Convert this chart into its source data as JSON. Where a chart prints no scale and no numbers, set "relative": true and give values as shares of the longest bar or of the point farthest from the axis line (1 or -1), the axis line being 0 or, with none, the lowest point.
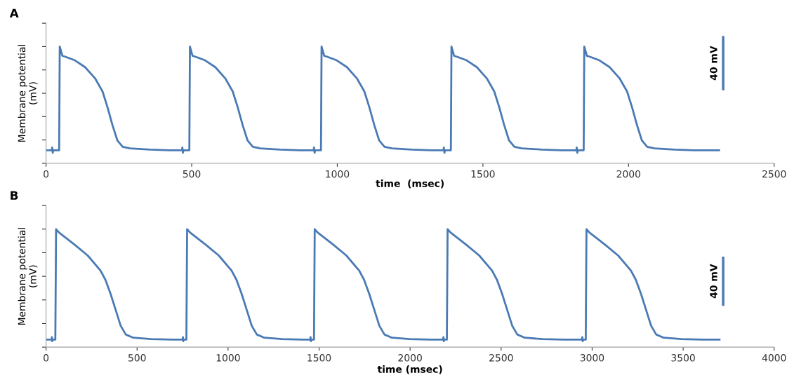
{
  "chart_data": [
    {
      "type": "line",
      "title": "A",
      "xlabel": "time  (msec)",
      "ylabel": "Membrane potential\n(mV)",
      "relative": true,
      "tick_labels": "x",
      "grid": false,
      "legend": false,
      "marker": "none",
      "line_style": "solid",
      "xlim": [
        0,
        2500
      ],
      "xticks": [
        0,
        500,
        1000,
        1500,
        2000,
        2500
      ],
      "annotations": [
        "40 mV"
      ],
      "series": [
        {
          "color": "#4a7ab4",
          "x": [
            0,
            20,
            21,
            23,
            25,
            45,
            47,
            56,
            65,
            99,
            134,
            168,
            194,
            211,
            228,
            245,
            263,
            288,
            357,
            425,
            467,
            468,
            470,
            472,
            492,
            494,
            503,
            512,
            546,
            581,
            615,
            641,
            658,
            675,
            692,
            710,
            735,
            804,
            872,
            919,
            920,
            922,
            924,
            944,
            946,
            955,
            964,
            998,
            1033,
            1067,
            1093,
            1110,
            1127,
            1144,
            1162,
            1187,
            1256,
            1324,
            1365,
            1366,
            1368,
            1370,
            1390,
            1392,
            1401,
            1410,
            1444,
            1479,
            1513,
            1539,
            1556,
            1573,
            1590,
            1608,
            1633,
            1702,
            1770,
            1821,
            1822,
            1824,
            1826,
            1846,
            1848,
            1857,
            1866,
            1900,
            1935,
            1969,
            1995,
            2012,
            2029,
            2046,
            2064,
            2089,
            2158,
            2226,
            2311
          ],
          "values": [
            0.112,
            0.112,
            0.135,
            0.09,
            0.112,
            0.112,
            1.0,
            0.92,
            0.914,
            0.882,
            0.824,
            0.729,
            0.615,
            0.481,
            0.328,
            0.195,
            0.141,
            0.128,
            0.118,
            0.112,
            0.112,
            0.135,
            0.09,
            0.112,
            0.112,
            1.0,
            0.92,
            0.914,
            0.882,
            0.824,
            0.729,
            0.615,
            0.481,
            0.328,
            0.195,
            0.141,
            0.128,
            0.118,
            0.112,
            0.112,
            0.135,
            0.09,
            0.112,
            0.112,
            1.0,
            0.92,
            0.914,
            0.882,
            0.824,
            0.729,
            0.615,
            0.481,
            0.328,
            0.195,
            0.141,
            0.128,
            0.118,
            0.112,
            0.112,
            0.135,
            0.09,
            0.112,
            0.112,
            1.0,
            0.92,
            0.914,
            0.882,
            0.824,
            0.729,
            0.615,
            0.481,
            0.328,
            0.195,
            0.141,
            0.128,
            0.118,
            0.112,
            0.112,
            0.135,
            0.09,
            0.112,
            0.112,
            1.0,
            0.92,
            0.914,
            0.882,
            0.824,
            0.729,
            0.615,
            0.481,
            0.328,
            0.195,
            0.141,
            0.128,
            0.118,
            0.112,
            0.112
          ]
        }
      ]
    },
    {
      "type": "line",
      "title": "B",
      "xlabel": "time (msec)",
      "ylabel": "Membrane potential\n(mV)",
      "relative": true,
      "tick_labels": "x",
      "grid": false,
      "legend": false,
      "marker": "none",
      "line_style": "solid",
      "xlim": [
        0,
        4000
      ],
      "xticks": [
        0,
        500,
        1000,
        1500,
        2000,
        2500,
        3000,
        3500,
        4000
      ],
      "annotations": [
        "40 mV"
      ],
      "series": [
        {
          "color": "#4a7ab4",
          "x": [
            0,
            31,
            32,
            34,
            36,
            51,
            55,
            71,
            160,
            229,
            299,
            326,
            354,
            382,
            410,
            438,
            479,
            576,
            691,
            751,
            752,
            754,
            756,
            771,
            775,
            791,
            880,
            949,
            1019,
            1046,
            1074,
            1102,
            1130,
            1158,
            1199,
            1296,
            1411,
            1452,
            1453,
            1455,
            1457,
            1472,
            1476,
            1492,
            1581,
            1650,
            1720,
            1747,
            1775,
            1803,
            1831,
            1859,
            1900,
            1997,
            2112,
            2182,
            2183,
            2185,
            2187,
            2202,
            2206,
            2222,
            2311,
            2380,
            2450,
            2477,
            2505,
            2533,
            2561,
            2589,
            2630,
            2727,
            2842,
            2945,
            2946,
            2948,
            2950,
            2965,
            2969,
            2985,
            3074,
            3143,
            3213,
            3240,
            3268,
            3296,
            3324,
            3352,
            3393,
            3490,
            3605,
            3700
          ],
          "values": [
            0.064,
            0.064,
            0.085,
            0.05,
            0.064,
            0.064,
            1.0,
            0.971,
            0.864,
            0.776,
            0.649,
            0.571,
            0.454,
            0.318,
            0.181,
            0.107,
            0.08,
            0.068,
            0.064,
            0.064,
            0.085,
            0.05,
            0.064,
            0.064,
            1.0,
            0.971,
            0.864,
            0.776,
            0.649,
            0.571,
            0.454,
            0.318,
            0.181,
            0.107,
            0.08,
            0.068,
            0.064,
            0.064,
            0.085,
            0.05,
            0.064,
            0.064,
            1.0,
            0.971,
            0.864,
            0.776,
            0.649,
            0.571,
            0.454,
            0.318,
            0.181,
            0.107,
            0.08,
            0.068,
            0.064,
            0.064,
            0.085,
            0.05,
            0.064,
            0.064,
            1.0,
            0.971,
            0.864,
            0.776,
            0.649,
            0.571,
            0.454,
            0.318,
            0.181,
            0.107,
            0.08,
            0.068,
            0.064,
            0.064,
            0.085,
            0.05,
            0.064,
            0.064,
            1.0,
            0.971,
            0.864,
            0.776,
            0.649,
            0.571,
            0.454,
            0.318,
            0.181,
            0.107,
            0.08,
            0.068,
            0.064,
            0.064
          ]
        }
      ]
    }
  ]
}
